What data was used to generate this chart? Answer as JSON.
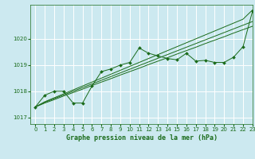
{
  "xlabel": "Graphe pression niveau de la mer (hPa)",
  "bg_color": "#cce9f0",
  "grid_color": "#ffffff",
  "line_color": "#1a6b1a",
  "xlim": [
    -0.5,
    23
  ],
  "ylim": [
    1016.75,
    1021.3
  ],
  "yticks": [
    1017,
    1018,
    1019,
    1020
  ],
  "xticks": [
    0,
    1,
    2,
    3,
    4,
    5,
    6,
    7,
    8,
    9,
    10,
    11,
    12,
    13,
    14,
    15,
    16,
    17,
    18,
    19,
    20,
    21,
    22,
    23
  ],
  "smooth1": [
    1017.4,
    1017.55,
    1017.68,
    1017.82,
    1017.95,
    1018.08,
    1018.22,
    1018.35,
    1018.48,
    1018.62,
    1018.75,
    1018.88,
    1019.02,
    1019.15,
    1019.28,
    1019.42,
    1019.55,
    1019.68,
    1019.82,
    1019.95,
    1020.08,
    1020.22,
    1020.35,
    1020.48
  ],
  "smooth2": [
    1017.4,
    1017.58,
    1017.72,
    1017.86,
    1018.0,
    1018.14,
    1018.28,
    1018.42,
    1018.56,
    1018.7,
    1018.84,
    1018.98,
    1019.12,
    1019.26,
    1019.4,
    1019.54,
    1019.68,
    1019.82,
    1019.96,
    1020.1,
    1020.24,
    1020.38,
    1020.52,
    1020.66
  ],
  "smooth3": [
    1017.4,
    1017.6,
    1017.75,
    1017.9,
    1018.05,
    1018.2,
    1018.35,
    1018.5,
    1018.65,
    1018.8,
    1018.95,
    1019.1,
    1019.25,
    1019.4,
    1019.55,
    1019.7,
    1019.85,
    1020.0,
    1020.15,
    1020.3,
    1020.45,
    1020.6,
    1020.75,
    1021.1
  ],
  "jagged": [
    1017.4,
    1017.85,
    1018.0,
    1018.0,
    1017.55,
    1017.55,
    1018.2,
    1018.75,
    1018.85,
    1019.0,
    1019.1,
    1019.65,
    1019.45,
    1019.35,
    1019.25,
    1019.2,
    1019.45,
    1019.15,
    1019.18,
    1019.1,
    1019.1,
    1019.3,
    1019.7,
    1021.05
  ]
}
